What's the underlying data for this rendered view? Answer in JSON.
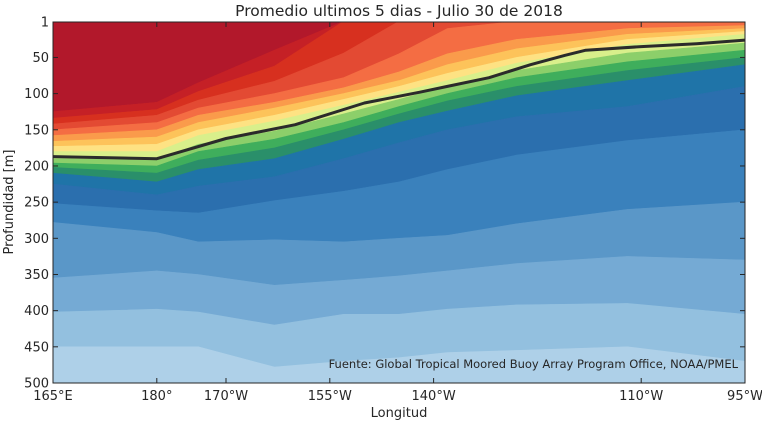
{
  "chart_data": {
    "type": "heatmap",
    "title": "Promedio ultimos 5 dias - Julio 30 de 2018",
    "xlabel": "Longitud",
    "ylabel": "Profundidad [m]",
    "annotation": "Fuente: Global Tropical Moored Buoy Array Program Office, NOAA/PMEL",
    "xlim": [
      165,
      265
    ],
    "ylim": [
      500,
      1
    ],
    "y_axis_inverted": true,
    "x_ticks": [
      {
        "value": 165,
        "label": "165°E"
      },
      {
        "value": 180,
        "label": "180°"
      },
      {
        "value": 190,
        "label": "170°W"
      },
      {
        "value": 205,
        "label": "155°W"
      },
      {
        "value": 220,
        "label": "140°W"
      },
      {
        "value": 250,
        "label": "110°W"
      },
      {
        "value": 265,
        "label": "95°W"
      }
    ],
    "y_ticks": [
      {
        "value": 1,
        "label": "1"
      },
      {
        "value": 50,
        "label": "50"
      },
      {
        "value": 100,
        "label": "100"
      },
      {
        "value": 150,
        "label": "150"
      },
      {
        "value": 200,
        "label": "200"
      },
      {
        "value": 250,
        "label": "250"
      },
      {
        "value": 300,
        "label": "300"
      },
      {
        "value": 350,
        "label": "350"
      },
      {
        "value": 400,
        "label": "400"
      },
      {
        "value": 450,
        "label": "450"
      },
      {
        "value": 500,
        "label": "500"
      }
    ],
    "palette_warm_to_cold": [
      "#b2182b",
      "#c52026",
      "#d7301f",
      "#e34a33",
      "#f46d43",
      "#fa9b4b",
      "#fdc35a",
      "#fee283",
      "#d9ef8b",
      "#8ccf6a",
      "#3fae5c",
      "#2a8f6a",
      "#1f74a8",
      "#2b6fae",
      "#3a81bc",
      "#5a97c8",
      "#75aad4",
      "#93c0df",
      "#aed0e8",
      "#c4dced",
      "#d6e6f2"
    ],
    "x": [
      165,
      180,
      186,
      197,
      207,
      215,
      222,
      232,
      248,
      265
    ],
    "contours": [
      {
        "level": 1,
        "depth": [
          0,
          0,
          0,
          0,
          0,
          0,
          0,
          0,
          0,
          0
        ]
      },
      {
        "level": 2,
        "depth": [
          125,
          112,
          85,
          40,
          0,
          0,
          0,
          0,
          0,
          0
        ]
      },
      {
        "level": 3,
        "depth": [
          134,
          122,
          97,
          62,
          0,
          0,
          0,
          0,
          0,
          0
        ]
      },
      {
        "level": 4,
        "depth": [
          142,
          130,
          109,
          83,
          44,
          0,
          0,
          0,
          0,
          0
        ]
      },
      {
        "level": 5,
        "depth": [
          150,
          140,
          120,
          100,
          78,
          45,
          10,
          0,
          0,
          0
        ]
      },
      {
        "level": 6,
        "depth": [
          158,
          150,
          130,
          112,
          92,
          70,
          45,
          25,
          10,
          6
        ]
      },
      {
        "level": 7,
        "depth": [
          166,
          160,
          140,
          120,
          100,
          82,
          60,
          38,
          18,
          10
        ]
      },
      {
        "level": 8,
        "depth": [
          173,
          170,
          150,
          130,
          108,
          90,
          72,
          50,
          25,
          14
        ]
      },
      {
        "level": 9,
        "depth": [
          180,
          180,
          158,
          138,
          116,
          98,
          82,
          58,
          32,
          18
        ]
      },
      {
        "level": 10,
        "depth": [
          190,
          192,
          170,
          152,
          128,
          108,
          90,
          68,
          44,
          30
        ]
      },
      {
        "level": 11,
        "depth": [
          196,
          200,
          180,
          163,
          140,
          118,
          100,
          78,
          56,
          40
        ]
      },
      {
        "level": 12,
        "depth": [
          202,
          210,
          192,
          175,
          150,
          128,
          110,
          90,
          68,
          50
        ]
      },
      {
        "level": 13,
        "depth": [
          210,
          222,
          205,
          190,
          163,
          140,
          124,
          103,
          82,
          60
        ]
      },
      {
        "level": 14,
        "depth": [
          225,
          240,
          228,
          215,
          190,
          168,
          150,
          132,
          118,
          90
        ]
      },
      {
        "level": 15,
        "depth": [
          252,
          262,
          265,
          248,
          235,
          222,
          205,
          185,
          165,
          150
        ]
      },
      {
        "level": 16,
        "depth": [
          278,
          292,
          305,
          302,
          305,
          300,
          296,
          280,
          260,
          250
        ]
      },
      {
        "level": 17,
        "depth": [
          355,
          345,
          350,
          365,
          358,
          352,
          345,
          335,
          325,
          330
        ]
      },
      {
        "level": 18,
        "depth": [
          402,
          398,
          402,
          420,
          405,
          405,
          398,
          392,
          390,
          405
        ]
      },
      {
        "level": 19,
        "depth": [
          450,
          450,
          450,
          478,
          470,
          465,
          458,
          455,
          450,
          470
        ]
      },
      {
        "level": 20,
        "depth": [
          500,
          500,
          500,
          500,
          500,
          500,
          500,
          500,
          500,
          500
        ]
      }
    ],
    "thermocline_line": {
      "x": [
        165,
        180,
        190,
        200,
        210,
        218,
        222,
        228,
        234,
        239,
        242,
        250,
        258,
        265
      ],
      "depth": [
        187,
        190,
        162,
        143,
        113,
        98,
        90,
        78,
        60,
        47,
        40,
        35,
        31,
        26
      ]
    },
    "grid": false,
    "legend": "none"
  }
}
